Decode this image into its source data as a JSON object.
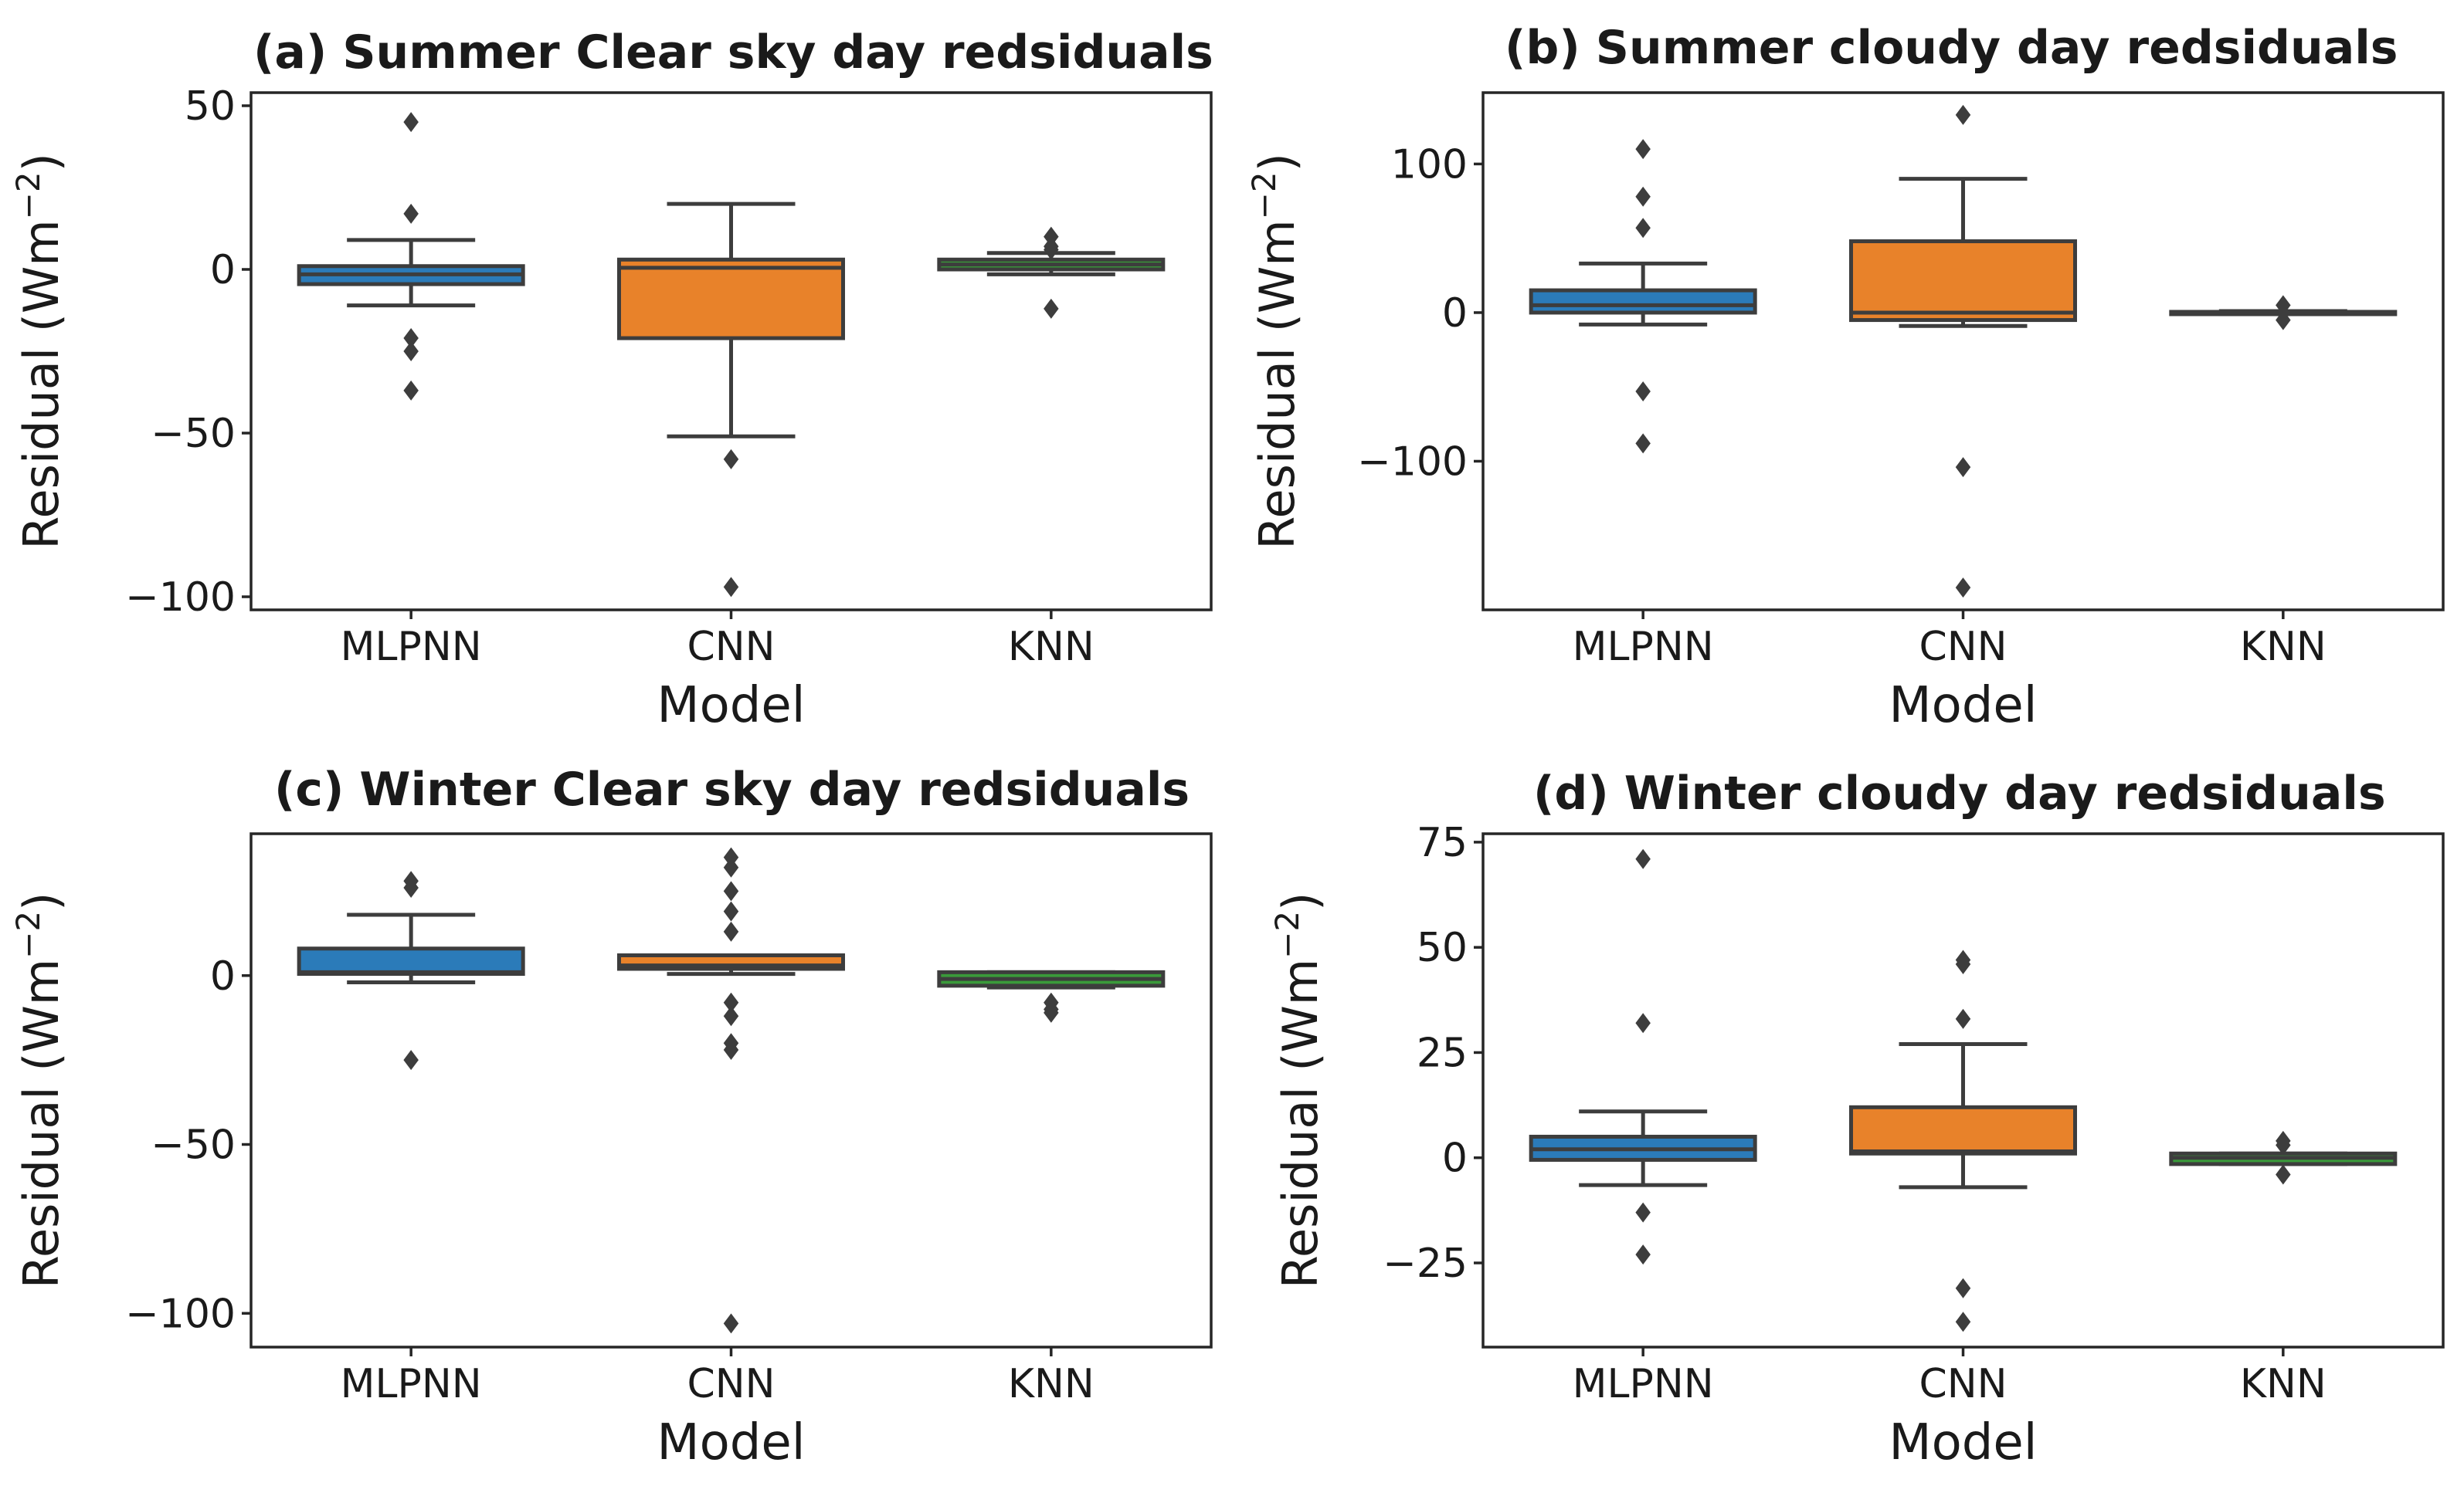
{
  "chart_data": [
    {
      "type": "box",
      "id": "a",
      "label": "(a)",
      "title": "Summer Clear sky day redsiduals",
      "xlabel": "Model",
      "ylabel": "Residual (Wm",
      "ylabel_sup": "−2",
      "ylabel_close": ")",
      "ylim": [
        -104,
        54
      ],
      "yticks": [
        50,
        0,
        -50,
        -100
      ],
      "ytick_labels": [
        "50",
        "0",
        "−50",
        "−100"
      ],
      "categories": [
        "MLPNN",
        "CNN",
        "KNN"
      ],
      "boxes": [
        {
          "name": "MLPNN",
          "color": "#2b7bb9",
          "q1": -4.5,
          "median": -1.5,
          "q3": 1,
          "whislo": -11,
          "whishi": 9,
          "fliers": [
            45,
            17,
            -21,
            -25,
            -37
          ]
        },
        {
          "name": "CNN",
          "color": "#e8822a",
          "q1": -21,
          "median": 0.5,
          "q3": 3,
          "whislo": -51,
          "whishi": 20,
          "fliers": [
            -58,
            -97
          ]
        },
        {
          "name": "KNN",
          "color": "#3a9a3a",
          "q1": 0,
          "median": 1.5,
          "q3": 3,
          "whislo": -1.5,
          "whishi": 5,
          "fliers": [
            10,
            7,
            6,
            -12
          ]
        }
      ]
    },
    {
      "type": "box",
      "id": "b",
      "label": "(b)",
      "title": "Summer cloudy day redsiduals",
      "xlabel": "Model",
      "ylabel": "Residual (Wm",
      "ylabel_sup": "−2",
      "ylabel_close": ")",
      "ylim": [
        -200,
        148
      ],
      "yticks": [
        100,
        0,
        -100
      ],
      "ytick_labels": [
        "100",
        "0",
        "−100"
      ],
      "categories": [
        "MLPNN",
        "CNN",
        "KNN"
      ],
      "boxes": [
        {
          "name": "MLPNN",
          "color": "#2b7bb9",
          "q1": 0,
          "median": 5,
          "q3": 15,
          "whislo": -8,
          "whishi": 33,
          "fliers": [
            110,
            78,
            57,
            -53,
            -88
          ]
        },
        {
          "name": "CNN",
          "color": "#e8822a",
          "q1": -5,
          "median": 0,
          "q3": 48,
          "whislo": -9,
          "whishi": 90,
          "fliers": [
            133,
            -104,
            -185
          ]
        },
        {
          "name": "KNN",
          "color": "#3a9a3a",
          "q1": -0.5,
          "median": 0,
          "q3": 0.5,
          "whislo": -1,
          "whishi": 1,
          "fliers": [
            5,
            -5
          ]
        }
      ]
    },
    {
      "type": "box",
      "id": "c",
      "label": "(c)",
      "title": "Winter Clear sky day redsiduals",
      "xlabel": "Model",
      "ylabel": "Residual (Wm",
      "ylabel_sup": "−2",
      "ylabel_close": ")",
      "ylim": [
        -110,
        42
      ],
      "yticks": [
        0,
        -50,
        -100
      ],
      "ytick_labels": [
        "0",
        "−50",
        "−100"
      ],
      "categories": [
        "MLPNN",
        "CNN",
        "KNN"
      ],
      "boxes": [
        {
          "name": "MLPNN",
          "color": "#2b7bb9",
          "q1": 0.5,
          "median": 1,
          "q3": 8,
          "whislo": -2,
          "whishi": 18,
          "fliers": [
            28,
            26,
            -25
          ]
        },
        {
          "name": "CNN",
          "color": "#e8822a",
          "q1": 2,
          "median": 3,
          "q3": 6,
          "whislo": 0.5,
          "whishi": 6,
          "fliers": [
            35,
            32,
            25,
            19,
            13,
            -8,
            -12,
            -20,
            -22,
            -103
          ]
        },
        {
          "name": "KNN",
          "color": "#3a9a3a",
          "q1": -3,
          "median": -1,
          "q3": 1,
          "whislo": -3.5,
          "whishi": 1,
          "fliers": [
            -8,
            -10,
            -11
          ]
        }
      ]
    },
    {
      "type": "box",
      "id": "d",
      "label": "(d)",
      "title": "Winter cloudy day redsiduals",
      "xlabel": "Model",
      "ylabel": "Residual (Wm",
      "ylabel_sup": "−2",
      "ylabel_close": ")",
      "ylim": [
        -45,
        77
      ],
      "yticks": [
        75,
        50,
        25,
        0,
        -25
      ],
      "ytick_labels": [
        "75",
        "50",
        "25",
        "0",
        "−25"
      ],
      "categories": [
        "MLPNN",
        "CNN",
        "KNN"
      ],
      "boxes": [
        {
          "name": "MLPNN",
          "color": "#2b7bb9",
          "q1": -0.5,
          "median": 2,
          "q3": 5,
          "whislo": -6.5,
          "whishi": 11,
          "fliers": [
            71,
            32,
            -13,
            -23
          ]
        },
        {
          "name": "CNN",
          "color": "#e8822a",
          "q1": 1,
          "median": 1.5,
          "q3": 12,
          "whislo": -7,
          "whishi": 27,
          "fliers": [
            47,
            46,
            33,
            -31,
            -39
          ]
        },
        {
          "name": "KNN",
          "color": "#3a9a3a",
          "q1": -1.5,
          "median": 0,
          "q3": 1,
          "whislo": -1.5,
          "whishi": 1,
          "fliers": [
            3,
            4,
            -4
          ]
        }
      ]
    }
  ]
}
